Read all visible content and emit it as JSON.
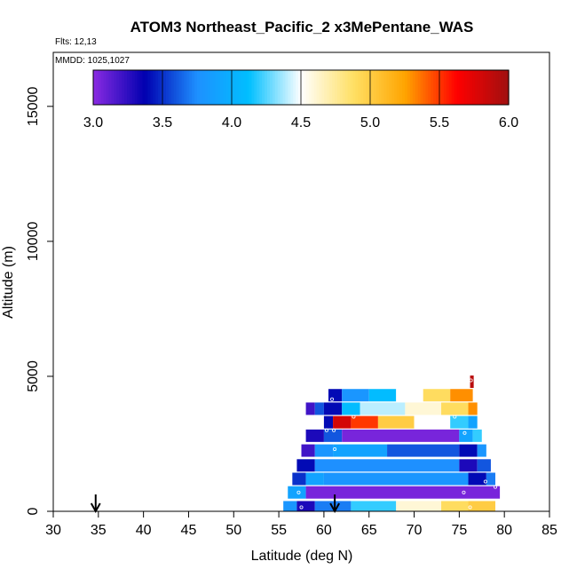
{
  "chart_data": {
    "type": "heatmap",
    "title": "ATOM3 Northeast_Pacific_2 x3MePentane_WAS",
    "info_lines": [
      "Flts: 12,13",
      "MMDD: 1025,1027"
    ],
    "xlabel": "Latitude (deg N)",
    "ylabel": "Altitude (m)",
    "xlim": [
      30,
      85
    ],
    "ylim": [
      0,
      17000
    ],
    "xticks": [
      "30",
      "35",
      "40",
      "45",
      "50",
      "55",
      "60",
      "65",
      "70",
      "75",
      "80",
      "85"
    ],
    "yticks": [
      "0",
      "5000",
      "10000",
      "15000"
    ],
    "colorbar": {
      "range": [
        3.0,
        6.0
      ],
      "ticks": [
        "3.0",
        "3.5",
        "4.0",
        "4.5",
        "5.0",
        "5.5",
        "6.0"
      ],
      "placement": "top",
      "stops": [
        "#8a2be2",
        "#0000b0",
        "#1e90ff",
        "#00bfff",
        "#ffffff",
        "#ffe066",
        "#ffa500",
        "#ff0000",
        "#a01010"
      ]
    },
    "arrows_lat": [
      34.7,
      61.2
    ],
    "layers": [
      {
        "alt": 150,
        "segments": [
          [
            55.5,
            57,
            3.8
          ],
          [
            57,
            59,
            3.3
          ],
          [
            59,
            63,
            3.7
          ],
          [
            63,
            68,
            4.2
          ],
          [
            68,
            73,
            4.6
          ],
          [
            73,
            76,
            4.9
          ],
          [
            76,
            79,
            5.0
          ]
        ]
      },
      {
        "alt": 700,
        "segments": [
          [
            56,
            58,
            3.9
          ],
          [
            58,
            79.5,
            3.05
          ]
        ]
      },
      {
        "alt": 1200,
        "segments": [
          [
            56.5,
            58,
            3.5
          ],
          [
            58,
            60,
            3.9
          ],
          [
            60,
            76,
            3.8
          ],
          [
            76,
            78,
            3.4
          ],
          [
            78,
            79,
            3.7
          ]
        ]
      },
      {
        "alt": 1700,
        "segments": [
          [
            57,
            59,
            3.4
          ],
          [
            59,
            75,
            3.75
          ],
          [
            75,
            77,
            3.3
          ],
          [
            77,
            78.5,
            3.6
          ]
        ]
      },
      {
        "alt": 2250,
        "segments": [
          [
            57.5,
            59,
            3.2
          ],
          [
            59,
            61,
            3.8
          ],
          [
            61,
            67,
            3.9
          ],
          [
            67,
            75,
            3.6
          ],
          [
            75,
            77,
            3.4
          ],
          [
            77,
            78,
            3.8
          ]
        ]
      },
      {
        "alt": 2800,
        "segments": [
          [
            58,
            60,
            3.3
          ],
          [
            60,
            62,
            3.6
          ],
          [
            62,
            75,
            3.05
          ],
          [
            75,
            76.5,
            3.9
          ],
          [
            76.5,
            77.5,
            4.2
          ]
        ]
      },
      {
        "alt": 3300,
        "segments": [
          [
            60,
            61,
            3.4
          ],
          [
            61,
            63,
            5.8
          ],
          [
            63,
            66,
            5.5
          ],
          [
            66,
            70,
            5.0
          ],
          [
            70,
            74,
            4.5
          ],
          [
            74,
            76,
            4.2
          ],
          [
            76,
            77,
            3.9
          ]
        ]
      },
      {
        "alt": 3800,
        "segments": [
          [
            58,
            59,
            3.2
          ],
          [
            59,
            60,
            3.6
          ],
          [
            60,
            62,
            3.4
          ],
          [
            62,
            64,
            4.1
          ],
          [
            64,
            69,
            4.4
          ],
          [
            69,
            73,
            4.6
          ],
          [
            73,
            76,
            4.9
          ],
          [
            76,
            77,
            5.3
          ]
        ]
      },
      {
        "alt": 4300,
        "segments": [
          [
            60.5,
            62,
            3.4
          ],
          [
            62,
            65,
            3.8
          ],
          [
            65,
            68,
            4.1
          ],
          [
            68,
            71,
            4.5
          ],
          [
            71,
            74,
            4.9
          ],
          [
            74,
            76.5,
            5.3
          ]
        ]
      },
      {
        "alt": 4800,
        "segments": [
          [
            76.2,
            76.6,
            5.9
          ]
        ]
      }
    ],
    "points": [
      [
        57.5,
        150
      ],
      [
        76.2,
        150
      ],
      [
        57.2,
        700
      ],
      [
        75.5,
        700
      ],
      [
        79.0,
        900
      ],
      [
        77.9,
        1100
      ],
      [
        61.2,
        2300
      ],
      [
        60.3,
        3000
      ],
      [
        61.1,
        3000
      ],
      [
        75.6,
        2900
      ],
      [
        63.3,
        3500
      ],
      [
        74.5,
        3500
      ],
      [
        60.9,
        4150
      ],
      [
        76.3,
        4850
      ]
    ]
  }
}
